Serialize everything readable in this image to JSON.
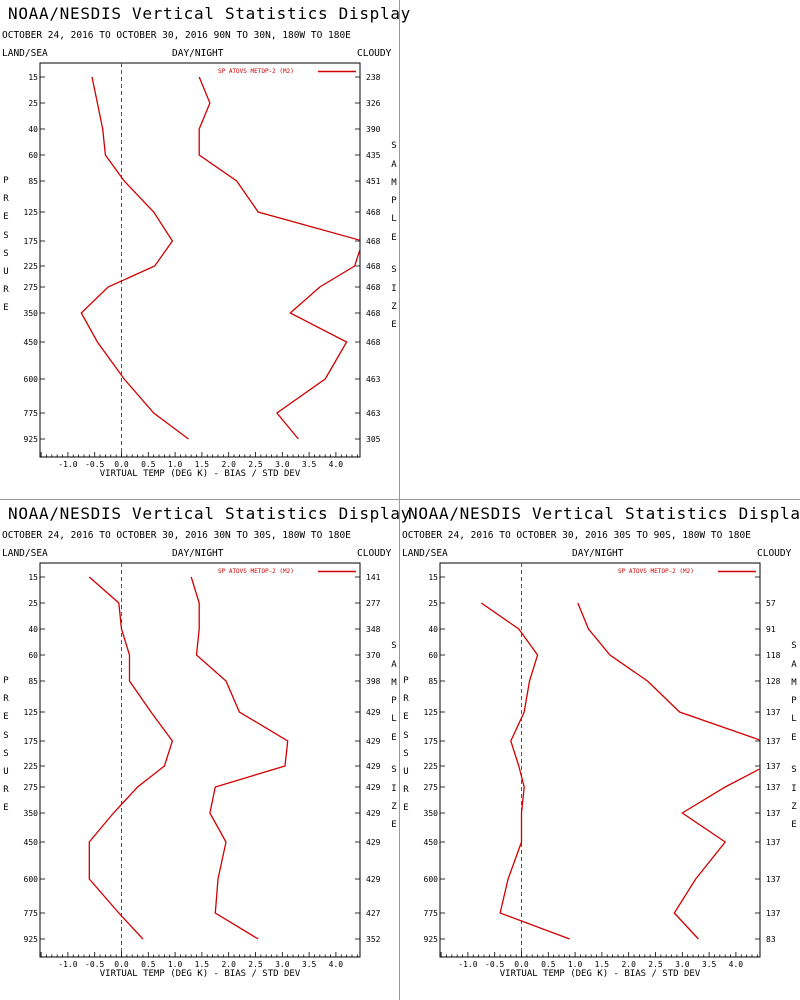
{
  "chart_data": [
    {
      "type": "line",
      "title": "NOAA/NESDIS Vertical Statistics Display",
      "subtitle": "OCTOBER 24, 2016 TO OCTOBER 30, 2016  90N TO 30N, 180W TO 180E",
      "header_left": "LAND/SEA",
      "header_center": "DAY/NIGHT",
      "header_right": "CLOUDY",
      "ylabel": "PRESSURE",
      "ylabel_right": "SAMPLE SIZE",
      "xlabel": "VIRTUAL TEMP (DEG K) - BIAS / STD DEV",
      "xlim": [
        -1.5,
        4.5
      ],
      "xticks": [
        "-1.0",
        "-0.5",
        "0.0",
        "0.5",
        "1.0",
        "1.5",
        "2.0",
        "2.5",
        "3.0",
        "3.5",
        "4.0"
      ],
      "legend": "SP ATOVS METOP-2 (M2)",
      "levels": [
        "15",
        "25",
        "40",
        "60",
        "85",
        "125",
        "175",
        "225",
        "275",
        "350",
        "450",
        "600",
        "775",
        "925"
      ],
      "sample_size": [
        "238",
        "326",
        "390",
        "435",
        "451",
        "468",
        "468",
        "468",
        "468",
        "468",
        "468",
        "463",
        "463",
        "305"
      ],
      "series": [
        {
          "values": [
            -0.55,
            -0.45,
            -0.35,
            -0.3,
            0.05,
            0.6,
            0.95,
            0.62,
            -0.25,
            -0.75,
            -0.45,
            0.05,
            0.6,
            1.25
          ]
        },
        {
          "values": [
            1.45,
            1.65,
            1.45,
            1.45,
            2.15,
            2.55,
            4.5,
            4.35,
            3.7,
            3.15,
            4.2,
            3.8,
            2.9,
            3.3
          ]
        }
      ]
    },
    {
      "type": "line",
      "title": "NOAA/NESDIS Vertical Statistics Display",
      "subtitle": "OCTOBER 24, 2016 TO OCTOBER 30, 2016  30N TO 30S, 180W TO 180E",
      "header_left": "LAND/SEA",
      "header_center": "DAY/NIGHT",
      "header_right": "CLOUDY",
      "ylabel": "PRESSURE",
      "ylabel_right": "SAMPLE SIZE",
      "xlabel": "VIRTUAL TEMP (DEG K) - BIAS / STD DEV",
      "xlim": [
        -1.5,
        4.5
      ],
      "xticks": [
        "-1.0",
        "-0.5",
        "0.0",
        "0.5",
        "1.0",
        "1.5",
        "2.0",
        "2.5",
        "3.0",
        "3.5",
        "4.0"
      ],
      "legend": "SP ATOVS METOP-2 (M2)",
      "levels": [
        "15",
        "25",
        "40",
        "60",
        "85",
        "125",
        "175",
        "225",
        "275",
        "350",
        "450",
        "600",
        "775",
        "925"
      ],
      "sample_size": [
        "141",
        "277",
        "348",
        "370",
        "398",
        "429",
        "429",
        "429",
        "429",
        "429",
        "429",
        "429",
        "427",
        "352"
      ],
      "series": [
        {
          "values": [
            -0.6,
            -0.05,
            0.0,
            0.15,
            0.15,
            0.55,
            0.95,
            0.8,
            0.3,
            -0.15,
            -0.6,
            -0.6,
            -0.05,
            0.4
          ]
        },
        {
          "values": [
            1.3,
            1.45,
            1.45,
            1.4,
            1.95,
            2.2,
            3.1,
            3.05,
            1.75,
            1.65,
            1.95,
            1.8,
            1.75,
            2.55
          ]
        }
      ]
    },
    {
      "type": "line",
      "title": "NOAA/NESDIS Vertical Statistics Display",
      "subtitle": "OCTOBER 24, 2016 TO OCTOBER 30, 2016  30S TO 90S, 180W TO 180E",
      "header_left": "LAND/SEA",
      "header_center": "DAY/NIGHT",
      "header_right": "CLOUDY",
      "ylabel": "PRESSURE",
      "ylabel_right": "SAMPLE SIZE",
      "xlabel": "VIRTUAL TEMP (DEG K) - BIAS / STD DEV",
      "xlim": [
        -1.5,
        4.5
      ],
      "xticks": [
        "-1.0",
        "-0.5",
        "0.0",
        "0.5",
        "1.0",
        "1.5",
        "2.0",
        "2.5",
        "3.0",
        "3.5",
        "4.0"
      ],
      "legend": "SP ATOVS METOP-2 (M2)",
      "levels": [
        "15",
        "25",
        "40",
        "60",
        "85",
        "125",
        "175",
        "225",
        "275",
        "350",
        "450",
        "600",
        "775",
        "925"
      ],
      "sample_size": [
        "",
        "57",
        "91",
        "118",
        "128",
        "137",
        "137",
        "137",
        "137",
        "137",
        "137",
        "137",
        "137",
        "83"
      ],
      "series": [
        {
          "values": [
            null,
            -0.75,
            -0.05,
            0.3,
            0.15,
            0.05,
            -0.2,
            -0.05,
            0.05,
            0.0,
            0.0,
            -0.25,
            -0.4,
            0.9
          ]
        },
        {
          "values": [
            null,
            1.05,
            1.25,
            1.65,
            2.35,
            2.95,
            4.5,
            4.55,
            3.8,
            3.0,
            3.8,
            3.25,
            2.85,
            3.3
          ]
        }
      ]
    }
  ]
}
